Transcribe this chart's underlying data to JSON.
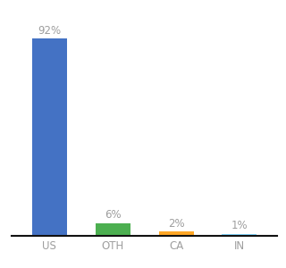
{
  "categories": [
    "US",
    "OTH",
    "CA",
    "IN"
  ],
  "values": [
    92,
    6,
    2,
    1
  ],
  "bar_colors": [
    "#4472c4",
    "#4caf50",
    "#ffa726",
    "#81d4fa"
  ],
  "label_color": "#9e9e9e",
  "ylim": [
    0,
    100
  ],
  "background_color": "#ffffff",
  "label_fontsize": 8.5,
  "tick_fontsize": 8.5,
  "bar_width": 0.55
}
